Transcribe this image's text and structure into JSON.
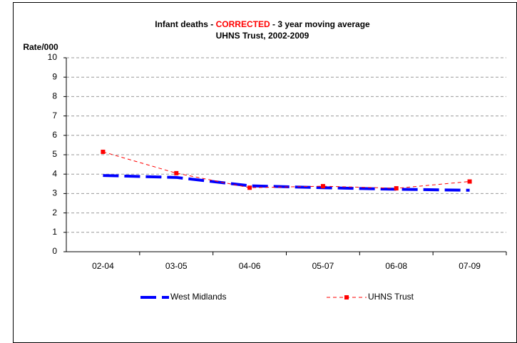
{
  "chart_data": {
    "type": "line",
    "title_parts": [
      "Infant deaths -",
      "CORRECTED",
      "-  3 year moving average"
    ],
    "title_highlight_color": "#ff0000",
    "subtitle": "UHNS Trust, 2002-2009",
    "ylabel": "Rate/000",
    "categories": [
      "02-04",
      "03-05",
      "04-06",
      "05-07",
      "06-08",
      "07-09"
    ],
    "series": [
      {
        "name": "West Midlands",
        "color": "#0000ff",
        "style": "dashed-thick",
        "values": [
          3.93,
          3.83,
          3.4,
          3.3,
          3.22,
          3.17
        ]
      },
      {
        "name": "UHNS Trust",
        "color": "#ff0000",
        "style": "dashed-marker",
        "values": [
          5.15,
          4.05,
          3.3,
          3.38,
          3.27,
          3.62
        ]
      }
    ],
    "ylim": [
      0,
      10
    ],
    "yticks": [
      0,
      1,
      2,
      3,
      4,
      5,
      6,
      7,
      8,
      9,
      10
    ],
    "grid": true
  }
}
